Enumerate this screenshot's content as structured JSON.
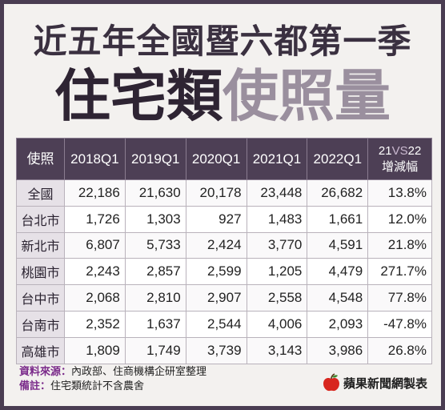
{
  "title_line1": "近五年全國暨六都第一季",
  "title_line2_dark": "住宅類",
  "title_line2_light": "使照量",
  "chart_data": {
    "type": "table",
    "header": {
      "first": "使照",
      "years": [
        "2018Q1",
        "2019Q1",
        "2020Q1",
        "2021Q1",
        "2022Q1"
      ],
      "vs_a": "21",
      "vs_mid": "VS",
      "vs_b": "22",
      "vs_label": "增減幅"
    },
    "rows": [
      {
        "name": "全國",
        "values": [
          "22,186",
          "21,630",
          "20,178",
          "23,448",
          "26,682"
        ],
        "change": "13.8%"
      },
      {
        "name": "台北市",
        "values": [
          "1,726",
          "1,303",
          "927",
          "1,483",
          "1,661"
        ],
        "change": "12.0%"
      },
      {
        "name": "新北市",
        "values": [
          "6,807",
          "5,733",
          "2,424",
          "3,770",
          "4,591"
        ],
        "change": "21.8%"
      },
      {
        "name": "桃園市",
        "values": [
          "2,243",
          "2,857",
          "2,599",
          "1,205",
          "4,479"
        ],
        "change": "271.7%"
      },
      {
        "name": "台中市",
        "values": [
          "2,068",
          "2,810",
          "2,907",
          "2,558",
          "4,548"
        ],
        "change": "77.8%"
      },
      {
        "name": "台南市",
        "values": [
          "2,352",
          "1,637",
          "2,544",
          "4,006",
          "2,093"
        ],
        "change": "-47.8%"
      },
      {
        "name": "高雄市",
        "values": [
          "1,809",
          "1,749",
          "3,739",
          "3,143",
          "3,986"
        ],
        "change": "26.8%"
      }
    ]
  },
  "notes": {
    "source_label": "資料來源：",
    "source_text": "內政部、住商機構企研室整理",
    "remark_label": "備註：",
    "remark_text": "住宅類統計不含農舍"
  },
  "brand": {
    "text": "蘋果新聞網製表",
    "icon": "apple-icon",
    "icon_color": "#d8261e"
  }
}
